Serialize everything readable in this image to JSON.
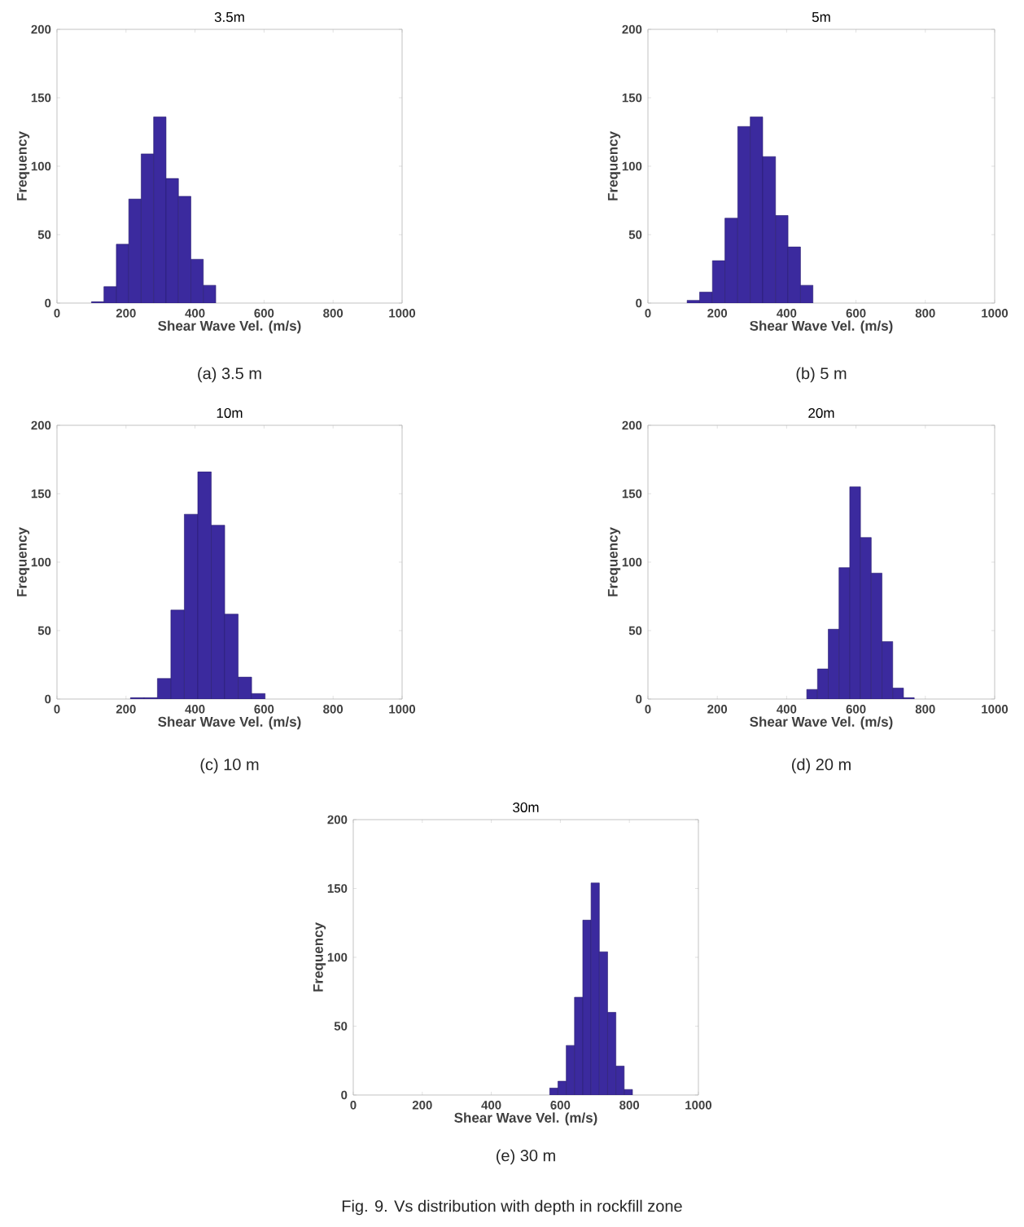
{
  "chart_data": [
    {
      "type": "histogram",
      "title": "3.5m",
      "xlabel": "Shear Wave Vel. (m/s)",
      "ylabel": "Frequency",
      "annotations": [
        "(a) 3.5 m"
      ],
      "color": "#3b2a9e",
      "grid": false,
      "bins": [
        100,
        136,
        172,
        208,
        244,
        280,
        316,
        352,
        388,
        424,
        460
      ],
      "values": [
        1,
        12,
        43,
        76,
        109,
        136,
        91,
        78,
        32,
        13
      ],
      "xlim": [
        0,
        1000
      ],
      "ylim": [
        0,
        200
      ],
      "xticks": [
        0,
        200,
        400,
        600,
        800,
        1000
      ],
      "yticks": [
        0,
        50,
        100,
        150,
        200
      ]
    },
    {
      "type": "histogram",
      "title": "5m",
      "xlabel": "Shear Wave Vel. (m/s)",
      "ylabel": "Frequency",
      "annotations": [
        "(b) 5 m"
      ],
      "color": "#3b2a9e",
      "grid": false,
      "bins": [
        113,
        149,
        186,
        222,
        259,
        295,
        331,
        368,
        404,
        440,
        476
      ],
      "values": [
        2,
        8,
        31,
        62,
        129,
        136,
        107,
        64,
        41,
        13
      ],
      "xlim": [
        0,
        1000
      ],
      "ylim": [
        0,
        200
      ],
      "xticks": [
        0,
        200,
        400,
        600,
        800,
        1000
      ],
      "yticks": [
        0,
        50,
        100,
        150,
        200
      ]
    },
    {
      "type": "histogram",
      "title": "10m",
      "xlabel": "Shear Wave Vel. (m/s)",
      "ylabel": "Frequency",
      "annotations": [
        "(c) 10 m"
      ],
      "color": "#3b2a9e",
      "grid": false,
      "bins": [
        213,
        252,
        291,
        330,
        369,
        408,
        447,
        486,
        525,
        564,
        603
      ],
      "values": [
        1,
        1,
        15,
        65,
        135,
        166,
        127,
        62,
        16,
        4
      ],
      "xlim": [
        0,
        1000
      ],
      "ylim": [
        0,
        200
      ],
      "xticks": [
        0,
        200,
        400,
        600,
        800,
        1000
      ],
      "yticks": [
        0,
        50,
        100,
        150,
        200
      ]
    },
    {
      "type": "histogram",
      "title": "20m",
      "xlabel": "Shear Wave Vel. (m/s)",
      "ylabel": "Frequency",
      "annotations": [
        "(d) 20 m"
      ],
      "color": "#3b2a9e",
      "grid": false,
      "bins": [
        458,
        489,
        520,
        551,
        582,
        613,
        644,
        675,
        706,
        737,
        768
      ],
      "values": [
        7,
        22,
        51,
        96,
        155,
        118,
        92,
        42,
        8,
        1
      ],
      "xlim": [
        0,
        1000
      ],
      "ylim": [
        0,
        200
      ],
      "xticks": [
        0,
        200,
        400,
        600,
        800,
        1000
      ],
      "yticks": [
        0,
        50,
        100,
        150,
        200
      ]
    },
    {
      "type": "histogram",
      "title": "30m",
      "xlabel": "Shear Wave Vel. (m/s)",
      "ylabel": "Frequency",
      "annotations": [
        "(e) 30 m",
        "Fig. 9. Vs distribution with depth in rockfill zone"
      ],
      "color": "#3b2a9e",
      "grid": false,
      "bins": [
        569,
        593,
        617,
        641,
        665,
        689,
        713,
        737,
        761,
        785,
        809
      ],
      "values": [
        5,
        10,
        36,
        71,
        127,
        154,
        104,
        60,
        21,
        4
      ],
      "xlim": [
        0,
        1000
      ],
      "ylim": [
        0,
        200
      ],
      "xticks": [
        0,
        200,
        400,
        600,
        800,
        1000
      ],
      "yticks": [
        0,
        50,
        100,
        150,
        200
      ]
    }
  ]
}
